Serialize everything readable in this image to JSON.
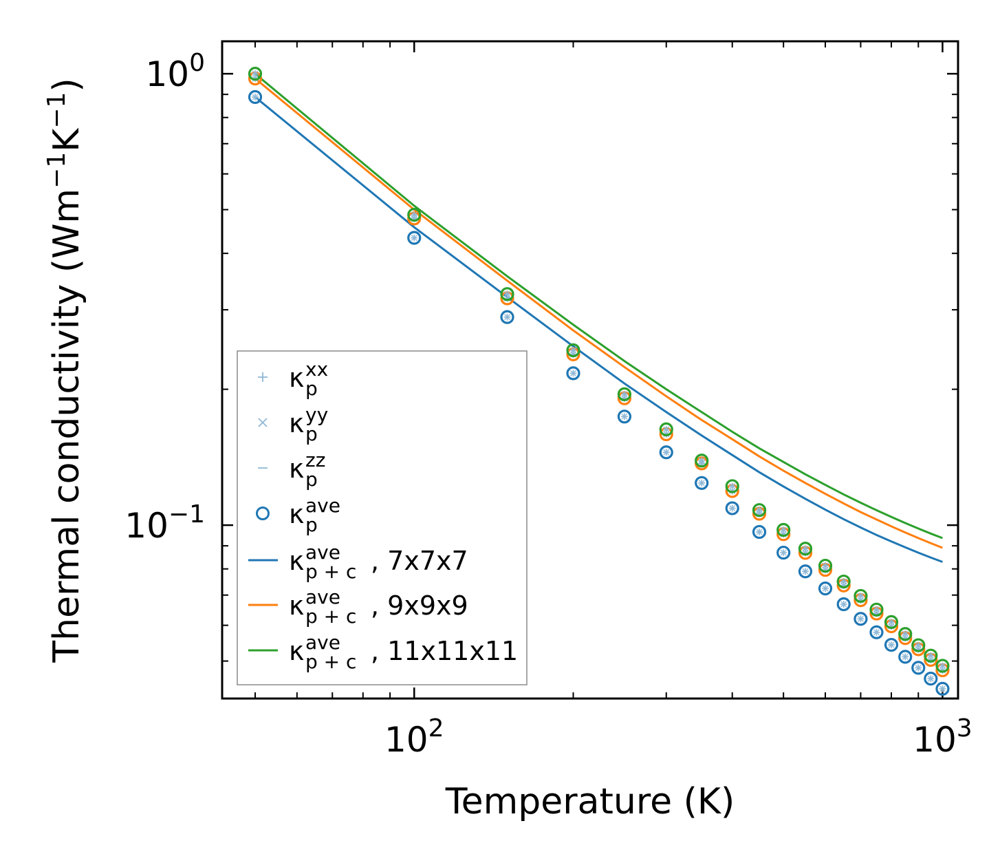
{
  "chart_data": {
    "type": "scatter",
    "title": "",
    "xlabel": "Temperature (K)",
    "ylabel": "Thermal conductivity (Wm",
    "ylabel_sup1": "−1",
    "ylabel_mid": "K",
    "ylabel_sup2": "−1",
    "ylabel_end": ")",
    "xscale": "log",
    "yscale": "log",
    "xlim": [
      43.3,
      1070
    ],
    "ylim": [
      0.0413,
      1.18
    ],
    "x_ticks": [
      {
        "base": "10",
        "exp": "2",
        "value": 100
      },
      {
        "base": "10",
        "exp": "3",
        "value": 1000
      }
    ],
    "y_ticks": [
      {
        "base": "10",
        "exp": "0",
        "value": 1.0
      },
      {
        "base": "10",
        "exp": "−1",
        "value": 0.1
      }
    ],
    "x": [
      50,
      100,
      150,
      200,
      250,
      300,
      350,
      400,
      450,
      500,
      550,
      600,
      650,
      700,
      750,
      800,
      850,
      900,
      950,
      1000
    ],
    "colors": {
      "blue": "#1f77b4",
      "orange": "#ff7f0e",
      "green": "#2ca02c",
      "component": "#8fb8d6"
    },
    "series": [
      {
        "name": "kappa_p_ave 7x7x7",
        "kind": "points",
        "color": "#1f77b4",
        "values": [
          0.888,
          0.433,
          0.289,
          0.217,
          0.174,
          0.145,
          0.124,
          0.109,
          0.0966,
          0.0869,
          0.079,
          0.0724,
          0.0668,
          0.062,
          0.0579,
          0.0543,
          0.0511,
          0.0483,
          0.0457,
          0.0434
        ]
      },
      {
        "name": "kappa_p_ave 9x9x9",
        "kind": "points",
        "color": "#ff7f0e",
        "values": [
          0.976,
          0.478,
          0.318,
          0.239,
          0.191,
          0.159,
          0.137,
          0.119,
          0.106,
          0.0955,
          0.0868,
          0.0796,
          0.0735,
          0.0682,
          0.0637,
          0.0597,
          0.0562,
          0.0531,
          0.0503,
          0.0477
        ]
      },
      {
        "name": "kappa_p_ave 11x11x11",
        "kind": "points",
        "color": "#2ca02c",
        "values": [
          1.0,
          0.487,
          0.325,
          0.244,
          0.195,
          0.163,
          0.139,
          0.122,
          0.108,
          0.0976,
          0.0887,
          0.0813,
          0.075,
          0.0697,
          0.065,
          0.061,
          0.0574,
          0.0542,
          0.0514,
          0.0488
        ]
      },
      {
        "name": "kappa_p+c_ave 7x7x7",
        "kind": "line",
        "color": "#1f77b4",
        "values": [
          0.888,
          0.457,
          0.32,
          0.249,
          0.206,
          0.178,
          0.158,
          0.143,
          0.131,
          0.1218,
          0.1144,
          0.1082,
          0.1031,
          0.0988,
          0.0951,
          0.092,
          0.0893,
          0.0869,
          0.0848,
          0.0829
        ]
      },
      {
        "name": "kappa_p+c_ave 9x9x9",
        "kind": "line",
        "color": "#ff7f0e",
        "values": [
          0.976,
          0.5,
          0.348,
          0.27,
          0.224,
          0.193,
          0.171,
          0.155,
          0.142,
          0.132,
          0.124,
          0.1173,
          0.1117,
          0.1069,
          0.1029,
          0.0994,
          0.0963,
          0.0936,
          0.0912,
          0.0891
        ]
      },
      {
        "name": "kappa_p+c_ave 11x11x11",
        "kind": "line",
        "color": "#2ca02c",
        "values": [
          1.0,
          0.51,
          0.356,
          0.278,
          0.231,
          0.2,
          0.178,
          0.161,
          0.148,
          0.138,
          0.1296,
          0.1228,
          0.117,
          0.1121,
          0.1079,
          0.1043,
          0.1011,
          0.0983,
          0.0958,
          0.0936
        ]
      }
    ],
    "legend": {
      "location": "lower-left",
      "entries": [
        {
          "marker": "+",
          "color": "#8fb8d6",
          "base": "κ",
          "sub": "p",
          "sup": "xx",
          "suffix": ""
        },
        {
          "marker": "×",
          "color": "#8fb8d6",
          "base": "κ",
          "sub": "p",
          "sup": "yy",
          "suffix": ""
        },
        {
          "marker": "−",
          "color": "#8fb8d6",
          "base": "κ",
          "sub": "p",
          "sup": "zz",
          "suffix": ""
        },
        {
          "marker": "o",
          "color": "#1f77b4",
          "base": "κ",
          "sub": "p",
          "sup": "ave",
          "suffix": ""
        },
        {
          "marker": "line",
          "color": "#1f77b4",
          "base": "κ",
          "sub": "p + c",
          "sup": "ave",
          "suffix": ", 7x7x7"
        },
        {
          "marker": "line",
          "color": "#ff7f0e",
          "base": "κ",
          "sub": "p + c",
          "sup": "ave",
          "suffix": ", 9x9x9"
        },
        {
          "marker": "line",
          "color": "#2ca02c",
          "base": "κ",
          "sub": "p + c",
          "sup": "ave",
          "suffix": ", 11x11x11"
        }
      ]
    }
  }
}
